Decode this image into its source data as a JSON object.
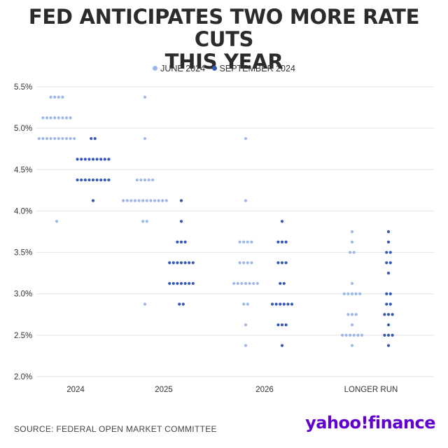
{
  "title_line1": "FED ANTICIPATES TWO MORE RATE CUTS",
  "title_line2": "THIS YEAR",
  "source": "SOURCE: FEDERAL OPEN MARKET COMMITTEE",
  "logo": {
    "yahoo": "yahoo!",
    "finance": "finance"
  },
  "colors": {
    "june": "#9db8e8",
    "september": "#3557b8",
    "grid": "#e2e2e2",
    "text": "#333333",
    "logo": "#6001d2"
  },
  "chart_data": {
    "type": "scatter",
    "title": "FED ANTICIPATES TWO MORE RATE CUTS THIS YEAR",
    "xlabel": "",
    "ylabel": "",
    "categories": [
      "2024",
      "2025",
      "2026",
      "LONGER RUN"
    ],
    "ylim": [
      2.0,
      5.5
    ],
    "yticks": [
      "2.0%",
      "2.5%",
      "3.0%",
      "3.5%",
      "4.0%",
      "4.5%",
      "5.0%",
      "5.5%"
    ],
    "ytick_values": [
      2.0,
      2.5,
      3.0,
      3.5,
      4.0,
      4.5,
      5.0,
      5.5
    ],
    "grid": true,
    "legend": "top-center",
    "series": [
      {
        "name": "JUNE 2024",
        "color": "#9db8e8",
        "points": [
          {
            "category": "2024",
            "levels": [
              [
                5.375,
                4
              ],
              [
                5.125,
                8
              ],
              [
                4.875,
                10
              ],
              [
                3.875,
                1
              ]
            ]
          },
          {
            "category": "2025",
            "levels": [
              [
                5.375,
                1
              ],
              [
                4.875,
                1
              ],
              [
                4.375,
                5
              ],
              [
                4.125,
                12
              ],
              [
                3.875,
                2
              ],
              [
                2.875,
                1
              ]
            ]
          },
          {
            "category": "2026",
            "levels": [
              [
                4.875,
                1
              ],
              [
                4.125,
                1
              ],
              [
                3.625,
                4
              ],
              [
                3.375,
                4
              ],
              [
                3.125,
                7
              ],
              [
                2.875,
                2
              ],
              [
                2.625,
                1
              ],
              [
                2.375,
                1
              ]
            ]
          },
          {
            "category": "LONGER RUN",
            "levels": [
              [
                3.75,
                1
              ],
              [
                3.625,
                1
              ],
              [
                3.5,
                2
              ],
              [
                3.125,
                1
              ],
              [
                3.0,
                5
              ],
              [
                2.75,
                3
              ],
              [
                2.625,
                1
              ],
              [
                2.5,
                6
              ],
              [
                2.375,
                1
              ]
            ]
          }
        ]
      },
      {
        "name": "SEPTEMBER 2024",
        "color": "#3557b8",
        "points": [
          {
            "category": "2024",
            "levels": [
              [
                4.875,
                2
              ],
              [
                4.625,
                9
              ],
              [
                4.375,
                9
              ],
              [
                4.125,
                1
              ]
            ]
          },
          {
            "category": "2025",
            "levels": [
              [
                4.125,
                1
              ],
              [
                3.875,
                1
              ],
              [
                3.625,
                3
              ],
              [
                3.375,
                7
              ],
              [
                3.125,
                7
              ],
              [
                2.875,
                2
              ]
            ]
          },
          {
            "category": "2026",
            "levels": [
              [
                3.875,
                1
              ],
              [
                3.625,
                3
              ],
              [
                3.375,
                3
              ],
              [
                3.125,
                2
              ],
              [
                2.875,
                6
              ],
              [
                2.625,
                3
              ],
              [
                2.375,
                1
              ]
            ]
          },
          {
            "category": "LONGER RUN",
            "levels": [
              [
                3.75,
                1
              ],
              [
                3.625,
                1
              ],
              [
                3.5,
                2
              ],
              [
                3.375,
                2
              ],
              [
                3.25,
                1
              ],
              [
                3.0,
                2
              ],
              [
                2.875,
                2
              ],
              [
                2.75,
                3
              ],
              [
                2.625,
                1
              ],
              [
                2.5,
                3
              ],
              [
                2.375,
                1
              ]
            ]
          }
        ]
      }
    ]
  }
}
